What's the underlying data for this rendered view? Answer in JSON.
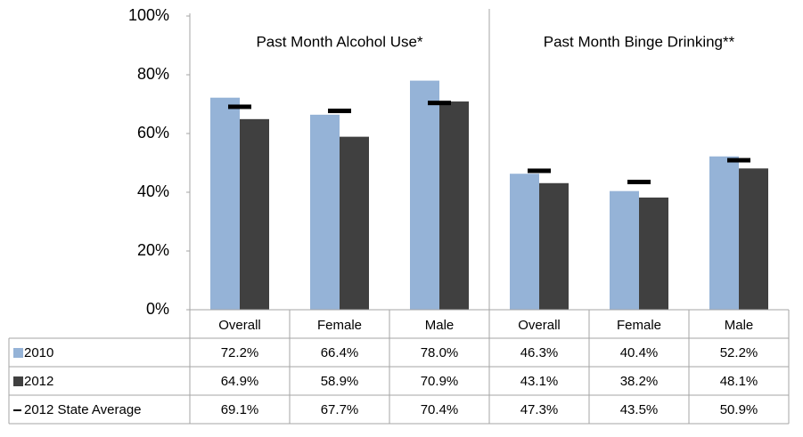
{
  "chart_data": {
    "type": "bar",
    "groups": [
      "Past Month Alcohol Use*",
      "Past Month Binge Drinking**"
    ],
    "categories": [
      "Overall",
      "Female",
      "Male",
      "Overall",
      "Female",
      "Male"
    ],
    "series": [
      {
        "name": "2010",
        "color": "#95b3d7",
        "style": "bar",
        "values": [
          72.2,
          66.4,
          78.0,
          46.3,
          40.4,
          52.2
        ],
        "value_labels": [
          "72.2%",
          "66.4%",
          "78.0%",
          "46.3%",
          "40.4%",
          "52.2%"
        ]
      },
      {
        "name": "2012",
        "color": "#404040",
        "style": "bar",
        "values": [
          64.9,
          58.9,
          70.9,
          43.1,
          38.2,
          48.1
        ],
        "value_labels": [
          "64.9%",
          "58.9%",
          "70.9%",
          "43.1%",
          "38.2%",
          "48.1%"
        ]
      },
      {
        "name": "2012 State Average",
        "color": "#000000",
        "style": "dash",
        "values": [
          69.1,
          67.7,
          70.4,
          47.3,
          43.5,
          50.9
        ],
        "value_labels": [
          "69.1%",
          "67.7%",
          "70.4%",
          "47.3%",
          "43.5%",
          "50.9%"
        ]
      }
    ],
    "ylim": [
      0,
      100
    ],
    "yticks": [
      {
        "value": 0,
        "label": "0%"
      },
      {
        "value": 20,
        "label": "20%"
      },
      {
        "value": 40,
        "label": "40%"
      },
      {
        "value": 60,
        "label": "60%"
      },
      {
        "value": 80,
        "label": "80%"
      },
      {
        "value": 100,
        "label": "100%"
      }
    ],
    "data_table": true
  }
}
